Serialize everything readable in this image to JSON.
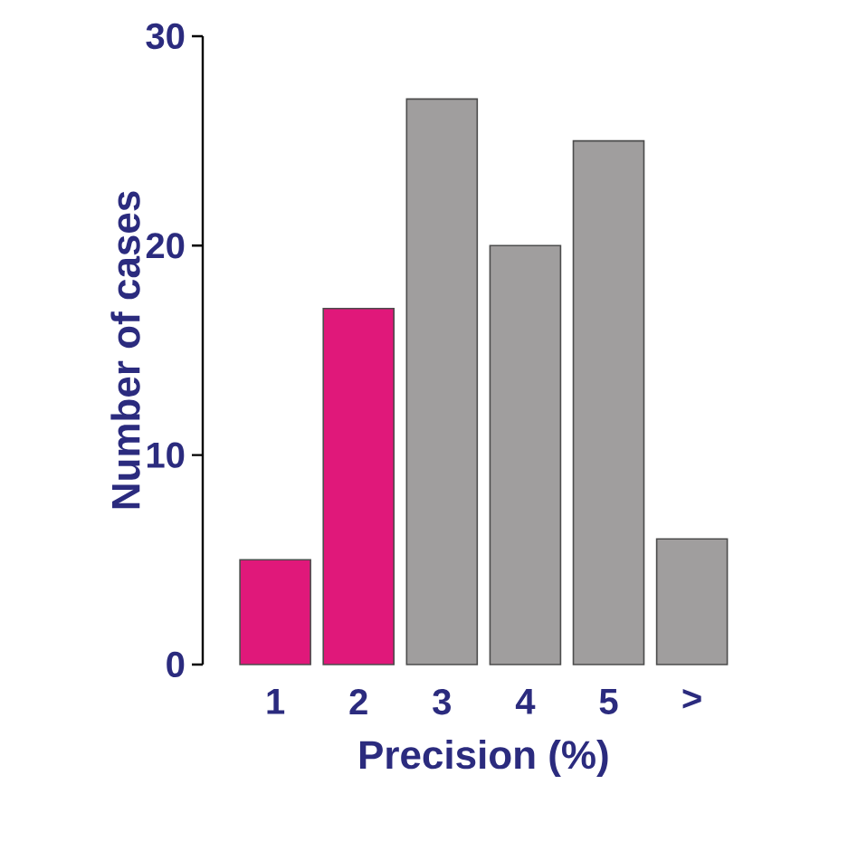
{
  "chart_data": {
    "type": "bar",
    "xlabel": "Precision (%)",
    "ylabel": "Number of cases",
    "categories": [
      "1",
      "2",
      "3",
      "4",
      "5",
      ">"
    ],
    "values": [
      5,
      17,
      27,
      20,
      25,
      6
    ],
    "colors": [
      "#e0187a",
      "#e0187a",
      "#a09e9e",
      "#a09e9e",
      "#a09e9e",
      "#a09e9e"
    ],
    "ylim": [
      0,
      30
    ],
    "yticks": [
      0,
      10,
      20,
      30
    ],
    "grid": false
  }
}
